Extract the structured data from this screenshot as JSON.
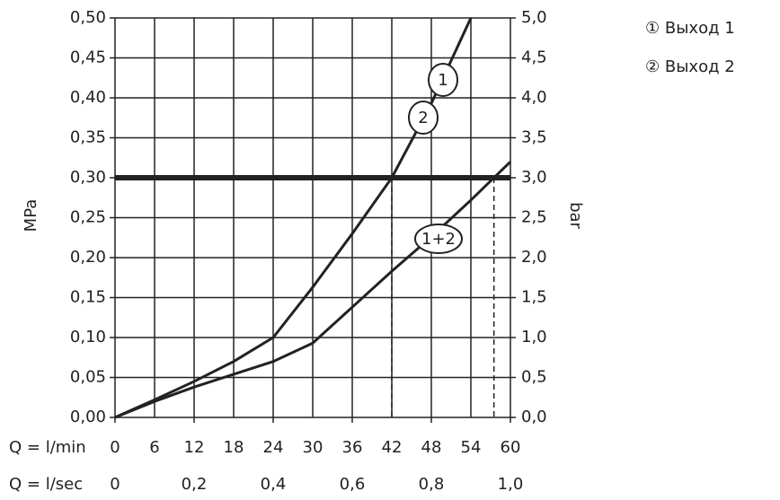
{
  "chart_data": {
    "type": "line",
    "x_label": "Q = l/min",
    "x2_label": "Q = l/sec",
    "y_label": "MPa",
    "y2_label": "bar",
    "legend": [
      "① Выход 1",
      "② Выход 2"
    ],
    "xlim": [
      0,
      60
    ],
    "xticks": [
      0,
      6,
      12,
      18,
      24,
      30,
      36,
      42,
      48,
      54,
      60
    ],
    "x2lim": [
      0,
      1
    ],
    "x2ticks": [
      0,
      {
        "value": 0.2,
        "label": "0,2"
      },
      {
        "value": 0.4,
        "label": "0,4"
      },
      {
        "value": 0.6,
        "label": "0,6"
      },
      {
        "value": 0.8,
        "label": "0,8"
      },
      {
        "value": 1,
        "label": "1,0"
      }
    ],
    "ylim": [
      0,
      0.5
    ],
    "yticks": [
      {
        "value": 0,
        "label": "0,00"
      },
      {
        "value": 0.05,
        "label": "0,05"
      },
      {
        "value": 0.1,
        "label": "0,10"
      },
      {
        "value": 0.15,
        "label": "0,15"
      },
      {
        "value": 0.2,
        "label": "0,20"
      },
      {
        "value": 0.25,
        "label": "0,25"
      },
      {
        "value": 0.3,
        "label": "0,30"
      },
      {
        "value": 0.35,
        "label": "0,35"
      },
      {
        "value": 0.4,
        "label": "0,40"
      },
      {
        "value": 0.45,
        "label": "0,45"
      },
      {
        "value": 0.5,
        "label": "0,50"
      }
    ],
    "y2lim": [
      0,
      5
    ],
    "y2ticks": [
      {
        "value": 0,
        "label": "0,0"
      },
      {
        "value": 0.5,
        "label": "0,5"
      },
      {
        "value": 1,
        "label": "1,0"
      },
      {
        "value": 1.5,
        "label": "1,5"
      },
      {
        "value": 2,
        "label": "2,0"
      },
      {
        "value": 2.5,
        "label": "2,5"
      },
      {
        "value": 3,
        "label": "3,0"
      },
      {
        "value": 3.5,
        "label": "3,5"
      },
      {
        "value": 4,
        "label": "4,0"
      },
      {
        "value": 4.5,
        "label": "4,5"
      },
      {
        "value": 5,
        "label": "5,0"
      }
    ],
    "grid": true,
    "color": "#222222",
    "reference_y": 0.3,
    "reference_x": [
      42,
      57.5
    ],
    "series": [
      {
        "name": "1",
        "x": [
          0,
          6,
          12,
          18,
          24,
          30,
          36,
          42,
          48,
          54
        ],
        "values": [
          0,
          0.022,
          0.045,
          0.07,
          0.1,
          0.163,
          0.23,
          0.3,
          0.393,
          0.5
        ]
      },
      {
        "name": "1+2",
        "x": [
          0,
          6,
          12,
          18,
          24,
          30,
          36,
          42,
          48,
          54,
          60
        ],
        "values": [
          0,
          0.02,
          0.038,
          0.054,
          0.07,
          0.093,
          0.138,
          0.183,
          0.226,
          0.272,
          0.32
        ]
      }
    ],
    "curve_labels": [
      "1",
      "2",
      "1+2"
    ]
  }
}
